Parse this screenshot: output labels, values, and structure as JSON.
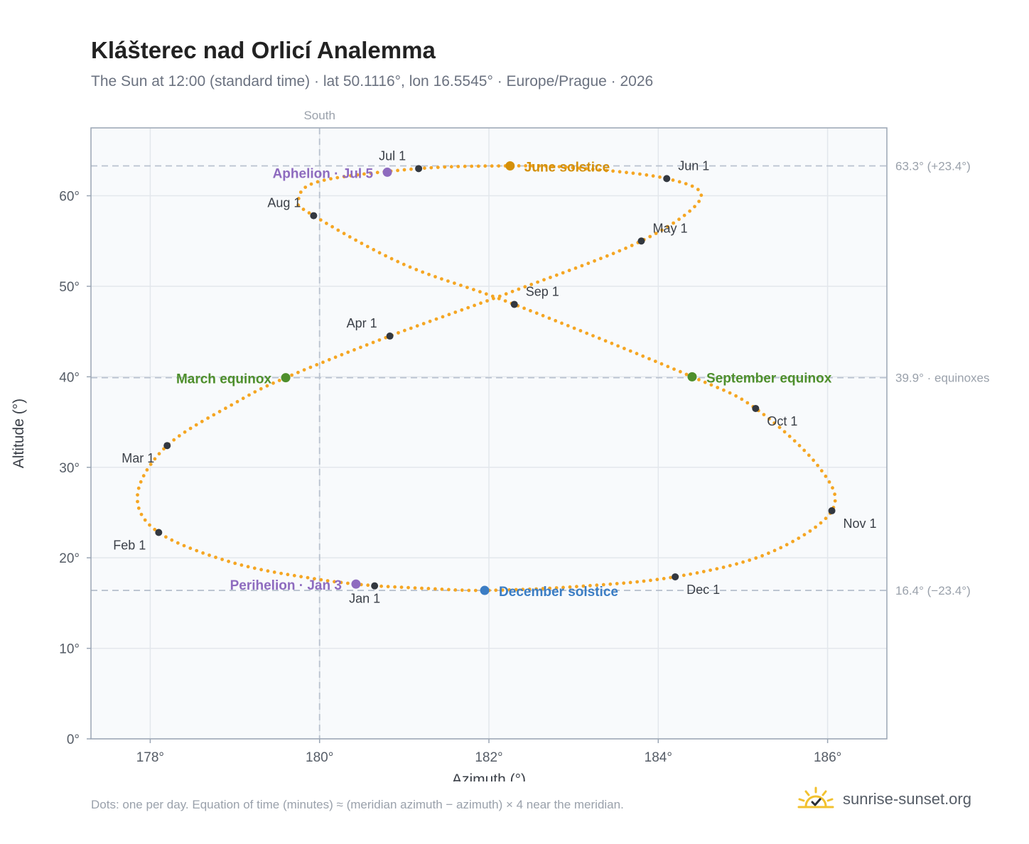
{
  "title": "Klášterec nad Orlicí Analemma",
  "subtitle": "The Sun at 12:00 (standard time) · lat 50.1116°, lon 16.5545° · Europe/Prague · 2026",
  "footnote": "Dots: one per day. Equation of time (minutes) ≈ (meridian azimuth − azimuth) × 4 near the meridian.",
  "brand": {
    "text": "sunrise-sunset.org",
    "icon": "sun-check-icon"
  },
  "colors": {
    "curve": "#f5a623",
    "month_dot": "#333840",
    "solstice_june": "#d4900a",
    "solstice_december": "#3b7dc4",
    "equinox": "#4e8f2c",
    "apsis": "#8e6bbf",
    "plot_bg": "#f8fafc",
    "grid": "#e3e7ec",
    "ref_line": "#b9c2cf"
  },
  "chart_data": {
    "type": "scatter",
    "title": "Klášterec nad Orlicí Analemma",
    "xlabel": "Azimuth (°)",
    "ylabel": "Altitude (°)",
    "xlim": [
      177.3,
      186.7
    ],
    "ylim": [
      0,
      67.5
    ],
    "xticks": [
      178,
      180,
      182,
      184,
      186
    ],
    "xtick_labels": [
      "178°",
      "180°",
      "182°",
      "184°",
      "186°"
    ],
    "yticks": [
      0,
      10,
      20,
      30,
      40,
      50,
      60
    ],
    "ytick_labels": [
      "0°",
      "10°",
      "20°",
      "30°",
      "40°",
      "50°",
      "60°"
    ],
    "grid": true,
    "vertical_reference": {
      "x": 180,
      "label": "South"
    },
    "horizontal_references": [
      {
        "y": 63.3,
        "label": "63.3° (+23.4°)"
      },
      {
        "y": 39.9,
        "label": "39.9° · equinoxes"
      },
      {
        "y": 16.4,
        "label": "16.4° (−23.4°)"
      }
    ],
    "series": [
      {
        "name": "daily",
        "note": "one dot per day, 2026",
        "points_per_day_altitude_range": [
          16.4,
          63.3
        ]
      }
    ],
    "month_markers": [
      {
        "label": "Jan 1",
        "azimuth": 180.65,
        "altitude": 16.9
      },
      {
        "label": "Feb 1",
        "azimuth": 178.1,
        "altitude": 22.8
      },
      {
        "label": "Mar 1",
        "azimuth": 178.2,
        "altitude": 32.4
      },
      {
        "label": "Apr 1",
        "azimuth": 180.83,
        "altitude": 44.5
      },
      {
        "label": "May 1",
        "azimuth": 183.8,
        "altitude": 55.0
      },
      {
        "label": "Jun 1",
        "azimuth": 184.1,
        "altitude": 61.9
      },
      {
        "label": "Jul 1",
        "azimuth": 181.17,
        "altitude": 63.0
      },
      {
        "label": "Aug 1",
        "azimuth": 179.93,
        "altitude": 57.8
      },
      {
        "label": "Sep 1",
        "azimuth": 182.3,
        "altitude": 48.0
      },
      {
        "label": "Oct 1",
        "azimuth": 185.15,
        "altitude": 36.5
      },
      {
        "label": "Nov 1",
        "azimuth": 186.05,
        "altitude": 25.2
      },
      {
        "label": "Dec 1",
        "azimuth": 184.2,
        "altitude": 17.9
      }
    ],
    "events": [
      {
        "label": "June solstice",
        "azimuth": 182.25,
        "altitude": 63.3,
        "kind": "solstice_june"
      },
      {
        "label": "December solstice",
        "azimuth": 181.95,
        "altitude": 16.4,
        "kind": "solstice_december"
      },
      {
        "label": "March equinox",
        "azimuth": 179.6,
        "altitude": 39.9,
        "kind": "equinox"
      },
      {
        "label": "September equinox",
        "azimuth": 184.4,
        "altitude": 40.0,
        "kind": "equinox"
      },
      {
        "label": "Aphelion · Jul 5",
        "azimuth": 180.8,
        "altitude": 62.6,
        "kind": "apsis"
      },
      {
        "label": "Perihelion · Jan 3",
        "azimuth": 180.43,
        "altitude": 17.1,
        "kind": "apsis"
      }
    ],
    "curve_control_points": [
      [
        180.65,
        16.9
      ],
      [
        180.0,
        17.6
      ],
      [
        179.0,
        19.4
      ],
      [
        178.1,
        22.8
      ],
      [
        177.85,
        27.0
      ],
      [
        178.2,
        32.4
      ],
      [
        179.0,
        37.1
      ],
      [
        179.6,
        39.9
      ],
      [
        180.83,
        44.5
      ],
      [
        182.3,
        49.5
      ],
      [
        183.8,
        55.0
      ],
      [
        184.5,
        59.7
      ],
      [
        184.1,
        61.9
      ],
      [
        183.0,
        63.1
      ],
      [
        182.25,
        63.3
      ],
      [
        181.17,
        63.0
      ],
      [
        180.0,
        61.6
      ],
      [
        179.75,
        59.5
      ],
      [
        179.93,
        57.8
      ],
      [
        181.0,
        52.4
      ],
      [
        182.3,
        48.0
      ],
      [
        184.4,
        40.0
      ],
      [
        185.15,
        36.5
      ],
      [
        185.9,
        30.0
      ],
      [
        186.05,
        25.2
      ],
      [
        185.3,
        20.5
      ],
      [
        184.2,
        17.9
      ],
      [
        183.0,
        16.8
      ],
      [
        181.95,
        16.4
      ],
      [
        181.3,
        16.6
      ],
      [
        180.65,
        16.9
      ]
    ]
  }
}
